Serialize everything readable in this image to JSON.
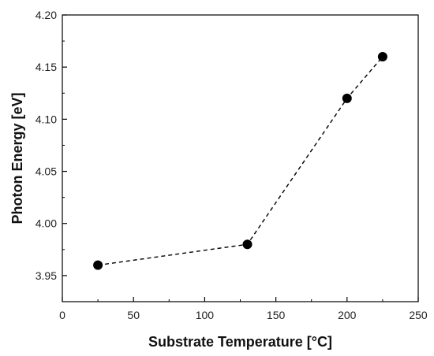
{
  "chart_data": {
    "type": "scatter",
    "xlabel": "Substrate Temperature [°C]",
    "ylabel": "Photon Energy [eV]",
    "xlim": [
      0,
      250
    ],
    "ylim": [
      3.925,
      4.2
    ],
    "x_ticks": [
      0,
      50,
      100,
      150,
      200,
      250
    ],
    "x_tick_labels": [
      "0",
      "50",
      "100",
      "150",
      "200",
      "250"
    ],
    "y_ticks": [
      3.95,
      4.0,
      4.05,
      4.1,
      4.15,
      4.2
    ],
    "y_tick_labels": [
      "3.95",
      "4.00",
      "4.05",
      "4.10",
      "4.15",
      "4.20"
    ],
    "grid": false,
    "connect_points": "dashed",
    "series": [
      {
        "x": [
          25,
          130,
          200,
          225
        ],
        "y": [
          3.96,
          3.98,
          4.12,
          4.16
        ]
      }
    ],
    "colors": {
      "marker": "#000000",
      "line": "#000000",
      "axis": "#000000"
    }
  }
}
